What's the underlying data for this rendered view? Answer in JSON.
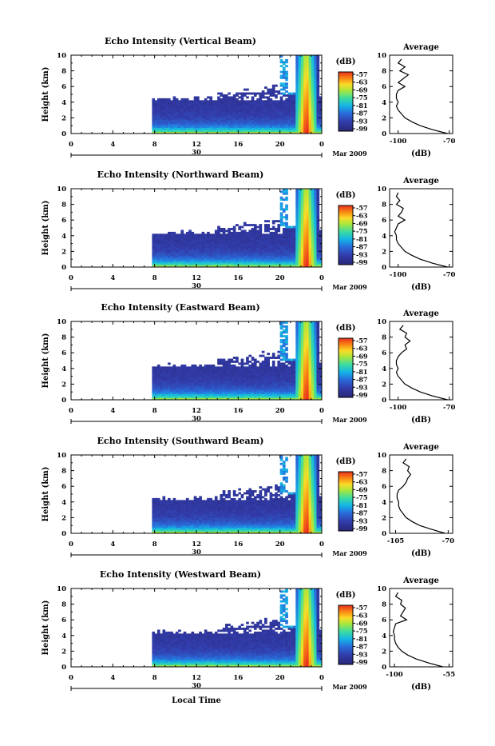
{
  "figure": {
    "xlabel": "Local Time",
    "date_label": "30",
    "month_label": "Mar 2009"
  },
  "chart_data": [
    {
      "type": "heatmap",
      "title": "Echo Intensity (Vertical Beam)",
      "ylabel": "Height (km)",
      "x_ticks": [
        "0",
        "4",
        "8",
        "12",
        "16",
        "20",
        "0"
      ],
      "y_ticks": [
        "0",
        "2",
        "4",
        "6",
        "8",
        "10"
      ],
      "xlim": [
        0,
        24
      ],
      "ylim": [
        0,
        10
      ],
      "colorbar": {
        "unit": "(dB)",
        "ticks": [
          "-57",
          "-63",
          "-69",
          "-75",
          "-81",
          "-87",
          "-93",
          "-99"
        ]
      },
      "profile": {
        "title": "Average",
        "xlabel": "(dB)",
        "x_ticks": [
          "-100",
          "-70"
        ],
        "xlim": [
          -105,
          -68
        ],
        "heights": [
          0,
          0.5,
          1,
          1.5,
          2,
          2.5,
          3,
          3.5,
          4,
          4.5,
          5,
          5.5,
          6,
          6.5,
          7,
          7.5,
          8,
          8.5,
          9,
          9.5
        ],
        "values": [
          -71,
          -80,
          -87,
          -92,
          -96,
          -98,
          -100,
          -101,
          -100,
          -101,
          -101,
          -100,
          -96,
          -100,
          -97,
          -94,
          -99,
          -96,
          -100,
          -98
        ]
      }
    },
    {
      "type": "heatmap",
      "title": "Echo Intensity (Northward Beam)",
      "ylabel": "Height (km)",
      "x_ticks": [
        "0",
        "4",
        "8",
        "12",
        "16",
        "20",
        "0"
      ],
      "y_ticks": [
        "0",
        "2",
        "4",
        "6",
        "8",
        "10"
      ],
      "xlim": [
        0,
        24
      ],
      "ylim": [
        0,
        10
      ],
      "colorbar": {
        "unit": "(dB)",
        "ticks": [
          "-57",
          "-63",
          "-69",
          "-75",
          "-81",
          "-87",
          "-93",
          "-99"
        ]
      },
      "profile": {
        "title": "Average",
        "xlabel": "(dB)",
        "x_ticks": [
          "-100",
          "-70"
        ],
        "xlim": [
          -105,
          -68
        ],
        "heights": [
          0,
          0.5,
          1,
          1.5,
          2,
          2.5,
          3,
          3.5,
          4,
          4.5,
          5,
          5.5,
          6,
          6.5,
          7,
          7.5,
          8,
          8.5,
          9,
          9.5
        ],
        "values": [
          -71,
          -80,
          -87,
          -92,
          -96,
          -98,
          -100,
          -101,
          -101,
          -102,
          -101,
          -100,
          -96,
          -100,
          -98,
          -97,
          -101,
          -99,
          -101,
          -100
        ]
      }
    },
    {
      "type": "heatmap",
      "title": "Echo Intensity (Eastward Beam)",
      "ylabel": "Height (km)",
      "x_ticks": [
        "0",
        "4",
        "8",
        "12",
        "16",
        "20",
        "0"
      ],
      "y_ticks": [
        "0",
        "2",
        "4",
        "6",
        "8",
        "10"
      ],
      "xlim": [
        0,
        24
      ],
      "ylim": [
        0,
        10
      ],
      "colorbar": {
        "unit": "(dB)",
        "ticks": [
          "-57",
          "-63",
          "-69",
          "-75",
          "-81",
          "-87",
          "-93",
          "-99"
        ]
      },
      "profile": {
        "title": "Average",
        "xlabel": "(dB)",
        "x_ticks": [
          "-100",
          "-70"
        ],
        "xlim": [
          -105,
          -68
        ],
        "heights": [
          0,
          0.5,
          1,
          1.5,
          2,
          2.5,
          3,
          3.5,
          4,
          4.5,
          5,
          5.5,
          6,
          6.5,
          7,
          7.5,
          8,
          8.5,
          9,
          9.5
        ],
        "values": [
          -71,
          -80,
          -87,
          -92,
          -96,
          -98,
          -100,
          -101,
          -100,
          -101,
          -101,
          -100,
          -98,
          -95,
          -96,
          -93,
          -96,
          -95,
          -99,
          -97
        ]
      }
    },
    {
      "type": "heatmap",
      "title": "Echo Intensity (Southward Beam)",
      "ylabel": "Height (km)",
      "x_ticks": [
        "0",
        "4",
        "8",
        "12",
        "16",
        "20",
        "0"
      ],
      "y_ticks": [
        "0",
        "2",
        "4",
        "6",
        "8",
        "10"
      ],
      "xlim": [
        0,
        24
      ],
      "ylim": [
        0,
        10
      ],
      "colorbar": {
        "unit": "(dB)",
        "ticks": [
          "-57",
          "-63",
          "-69",
          "-75",
          "-81",
          "-87",
          "-93",
          "-99"
        ]
      },
      "profile": {
        "title": "Average",
        "xlabel": "(dB)",
        "x_ticks": [
          "-105",
          "-70"
        ],
        "xlim": [
          -109,
          -67
        ],
        "heights": [
          0,
          0.5,
          1,
          1.5,
          2,
          2.5,
          3,
          3.5,
          4,
          4.5,
          5,
          5.5,
          6,
          6.5,
          7,
          7.5,
          8,
          8.5,
          9,
          9.5
        ],
        "values": [
          -72,
          -81,
          -89,
          -94,
          -98,
          -100,
          -102,
          -103,
          -103,
          -104,
          -104,
          -103,
          -100,
          -98,
          -97,
          -95,
          -97,
          -96,
          -100,
          -98
        ]
      }
    },
    {
      "type": "heatmap",
      "title": "Echo Intensity (Westward Beam)",
      "ylabel": "Height (km)",
      "x_ticks": [
        "0",
        "4",
        "8",
        "12",
        "16",
        "20",
        "0"
      ],
      "y_ticks": [
        "0",
        "2",
        "4",
        "6",
        "8",
        "10"
      ],
      "xlim": [
        0,
        24
      ],
      "ylim": [
        0,
        10
      ],
      "colorbar": {
        "unit": "(dB)",
        "ticks": [
          "-57",
          "-63",
          "-69",
          "-75",
          "-81",
          "-87",
          "-93",
          "-99"
        ]
      },
      "profile": {
        "title": "Average",
        "xlabel": "(dB)",
        "x_ticks": [
          "-100",
          "-55"
        ],
        "xlim": [
          -104,
          -52
        ],
        "heights": [
          0,
          0.5,
          1,
          1.5,
          2,
          2.5,
          3,
          3.5,
          4,
          4.5,
          5,
          5.5,
          6,
          6.5,
          7,
          7.5,
          8,
          8.5,
          9,
          9.5
        ],
        "values": [
          -60,
          -72,
          -82,
          -89,
          -94,
          -97,
          -99,
          -100,
          -100,
          -101,
          -100,
          -99,
          -90,
          -95,
          -93,
          -91,
          -95,
          -94,
          -99,
          -97
        ]
      }
    }
  ]
}
